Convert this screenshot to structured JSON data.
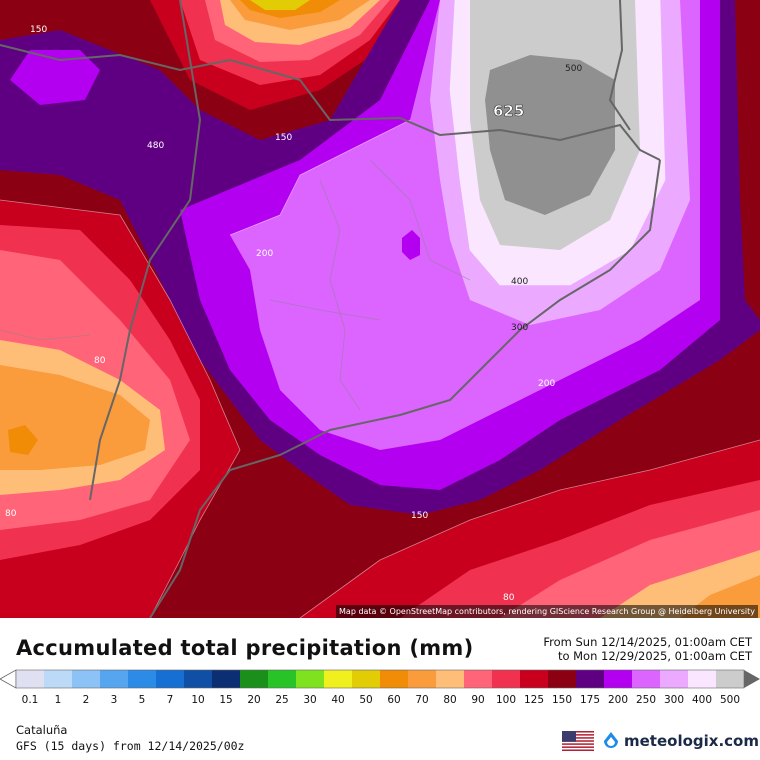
{
  "map": {
    "attribution": "Map data © OpenStreetMap contributors, rendering GIScience Research Group @ Heidelberg University",
    "contour_labels": [
      "150",
      "480",
      "150",
      "200",
      "80",
      "80",
      "625",
      "500",
      "400",
      "300",
      "200",
      "150",
      "80"
    ]
  },
  "legend": {
    "title": "Accumulated total precipitation (mm)",
    "period_from": "From Sun 12/14/2025, 01:00am CET",
    "period_to": "to Mon 12/29/2025, 01:00am CET",
    "bins": [
      {
        "label": "0.1",
        "color": "#e0e0f3"
      },
      {
        "label": "1",
        "color": "#bcd9f7"
      },
      {
        "label": "2",
        "color": "#8cc2f5"
      },
      {
        "label": "3",
        "color": "#56a5ef"
      },
      {
        "label": "5",
        "color": "#2b8be6"
      },
      {
        "label": "7",
        "color": "#166fd2"
      },
      {
        "label": "10",
        "color": "#0f50a6"
      },
      {
        "label": "15",
        "color": "#0c2e72"
      },
      {
        "label": "20",
        "color": "#1a8f1a"
      },
      {
        "label": "25",
        "color": "#27c327"
      },
      {
        "label": "30",
        "color": "#7fe21e"
      },
      {
        "label": "40",
        "color": "#f0f01e"
      },
      {
        "label": "50",
        "color": "#e2cc05"
      },
      {
        "label": "60",
        "color": "#f08c05"
      },
      {
        "label": "70",
        "color": "#fa9b3c"
      },
      {
        "label": "80",
        "color": "#ffbe78"
      },
      {
        "label": "90",
        "color": "#ff6478"
      },
      {
        "label": "100",
        "color": "#f03250"
      },
      {
        "label": "125",
        "color": "#c8001e"
      },
      {
        "label": "150",
        "color": "#8c0014"
      },
      {
        "label": "175",
        "color": "#5f0082"
      },
      {
        "label": "200",
        "color": "#b400f0"
      },
      {
        "label": "250",
        "color": "#dc64ff"
      },
      {
        "label": "300",
        "color": "#ebaaff"
      },
      {
        "label": "400",
        "color": "#fae6ff"
      },
      {
        "label": "500",
        "color": "#cccccc"
      }
    ]
  },
  "footer": {
    "region": "Cataluña",
    "model": "GFS (15 days) from 12/14/2025/00z",
    "brand": "meteologix.com"
  }
}
